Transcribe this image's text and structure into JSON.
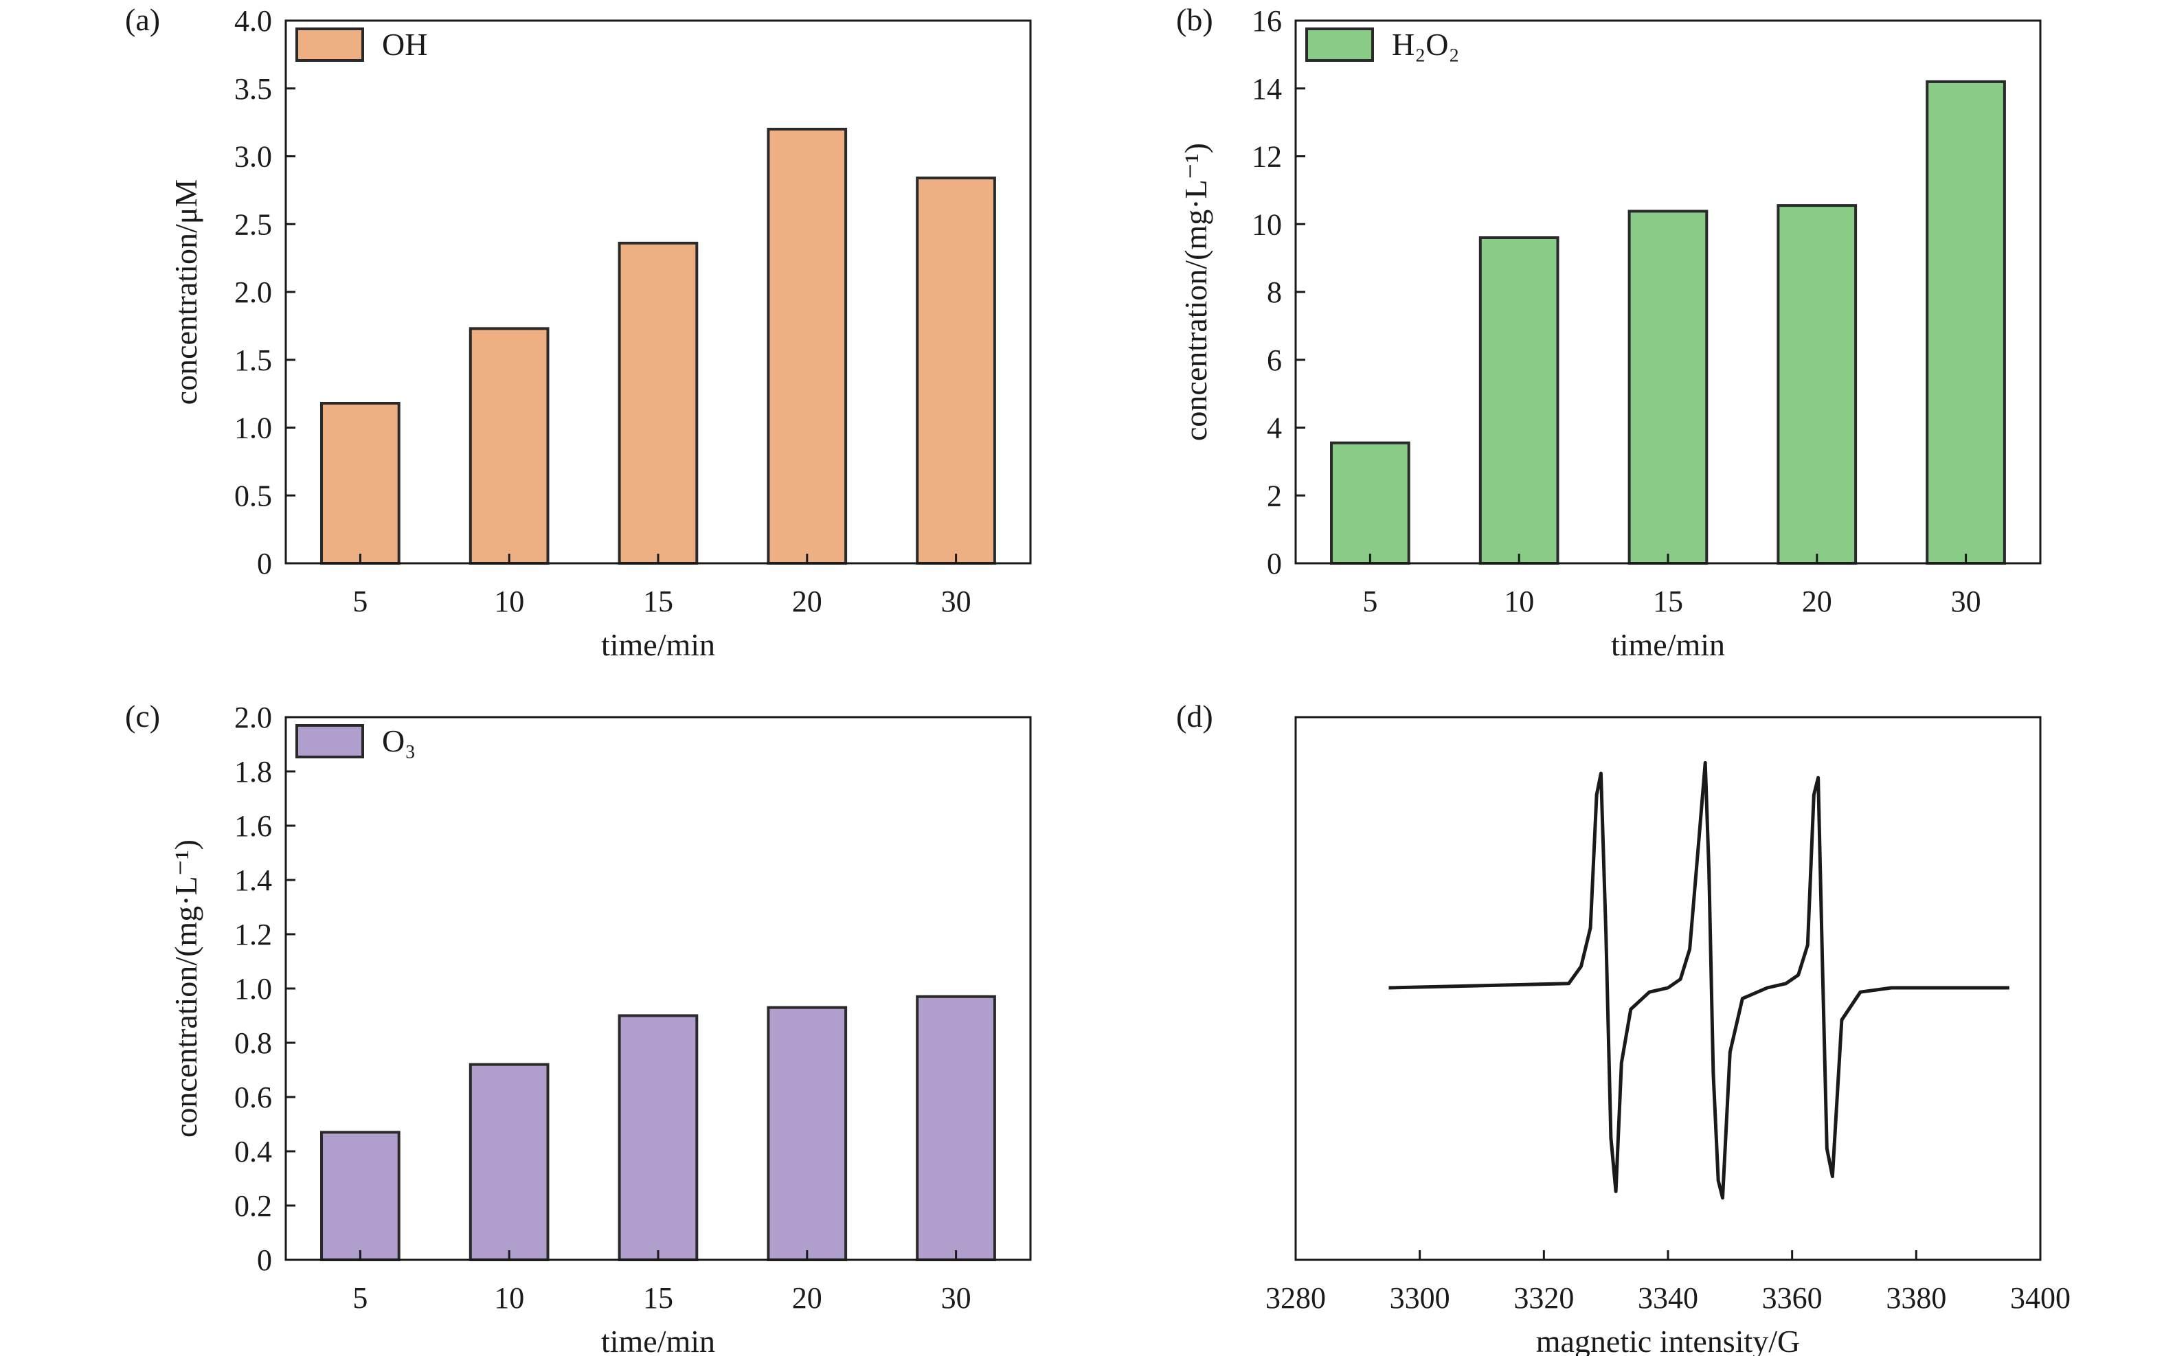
{
  "chart_data": [
    {
      "panel": "(a)",
      "type": "bar",
      "categories": [
        "5",
        "10",
        "15",
        "20",
        "30"
      ],
      "values": [
        1.18,
        1.73,
        2.36,
        3.2,
        2.84
      ],
      "xlabel": "time/min",
      "ylabel": "concentration/μM",
      "ylim": [
        0,
        4.0
      ],
      "yticks": [
        "0",
        "0.5",
        "1.0",
        "1.5",
        "2.0",
        "2.5",
        "3.0",
        "3.5",
        "4.0"
      ],
      "legend": "OH",
      "legend_placement": "top-left",
      "grid": false,
      "color": "#EEAF82"
    },
    {
      "panel": "(b)",
      "type": "bar",
      "categories": [
        "5",
        "10",
        "15",
        "20",
        "30"
      ],
      "values": [
        3.55,
        9.6,
        10.38,
        10.55,
        14.2
      ],
      "xlabel": "time/min",
      "ylabel": "concentration/(mg·L⁻¹)",
      "ylim": [
        0,
        16
      ],
      "yticks": [
        "0",
        "2",
        "4",
        "6",
        "8",
        "10",
        "12",
        "14",
        "16"
      ],
      "legend": "H₂O₂",
      "legend_placement": "top-left",
      "grid": false,
      "color": "#88CC88"
    },
    {
      "panel": "(c)",
      "type": "bar",
      "categories": [
        "5",
        "10",
        "15",
        "20",
        "30"
      ],
      "values": [
        0.47,
        0.72,
        0.9,
        0.93,
        0.97
      ],
      "xlabel": "time/min",
      "ylabel": "concentration/(mg·L⁻¹)",
      "ylim": [
        0,
        2.0
      ],
      "yticks": [
        "0",
        "0.2",
        "0.4",
        "0.6",
        "0.8",
        "1.0",
        "1.2",
        "1.4",
        "1.6",
        "1.8",
        "2.0"
      ],
      "legend": "O₃",
      "legend_placement": "top-left",
      "grid": false,
      "color": "#B09FCC"
    },
    {
      "panel": "(d)",
      "type": "line",
      "xlabel": "magnetic intensity/G",
      "ylabel": "",
      "xlim": [
        3280,
        3400
      ],
      "xticks": [
        "3280",
        "3300",
        "3320",
        "3340",
        "3360",
        "3380",
        "3400"
      ],
      "grid": false,
      "x": [
        3295,
        3324,
        3326,
        3327.5,
        3328.5,
        3329.2,
        3330,
        3330.8,
        3331.6,
        3332.5,
        3334,
        3337,
        3340,
        3342,
        3343.5,
        3345,
        3346,
        3346.6,
        3347.3,
        3348.1,
        3348.8,
        3350,
        3352,
        3356,
        3359,
        3361,
        3362.5,
        3363.5,
        3364.2,
        3364.9,
        3365.6,
        3366.5,
        3368,
        3371,
        3376,
        3380,
        3395
      ],
      "y": [
        0,
        0.02,
        0.1,
        0.28,
        0.9,
        1.0,
        0.25,
        -0.7,
        -0.95,
        -0.35,
        -0.1,
        -0.02,
        0.0,
        0.04,
        0.18,
        0.7,
        1.05,
        0.55,
        -0.4,
        -0.9,
        -0.98,
        -0.3,
        -0.05,
        0.0,
        0.02,
        0.06,
        0.2,
        0.9,
        0.98,
        0.1,
        -0.75,
        -0.88,
        -0.15,
        -0.02,
        0.0,
        0.0,
        0.0
      ]
    }
  ]
}
